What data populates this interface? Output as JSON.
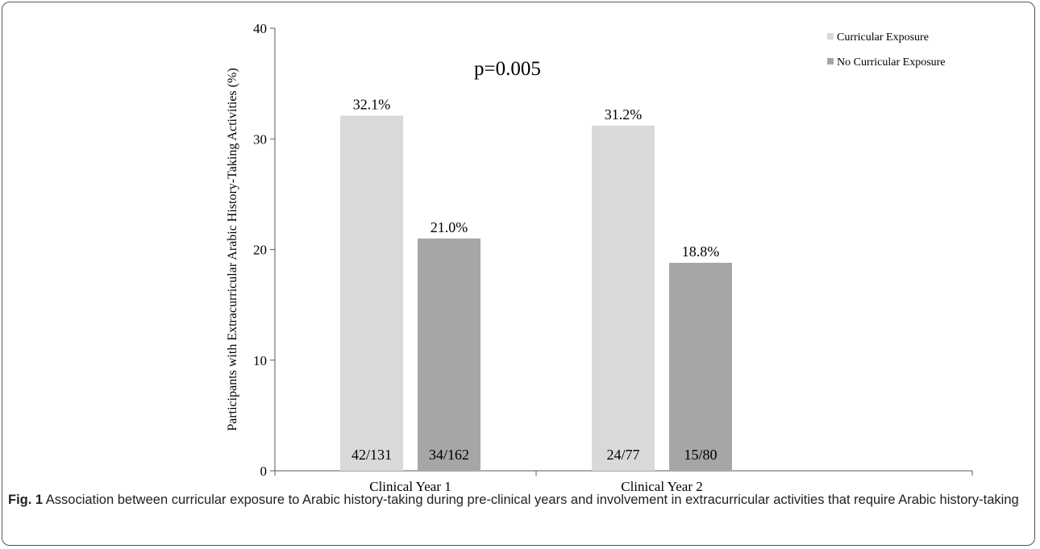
{
  "chart_data": {
    "type": "bar",
    "categories": [
      "Clinical Year 1",
      "Clinical Year 2"
    ],
    "series": [
      {
        "name": "Curricular Exposure",
        "values": [
          32.1,
          31.2
        ],
        "value_labels": [
          "32.1%",
          "31.2%"
        ],
        "count_labels": [
          "42/131",
          "24/77"
        ],
        "color": "#d9d9d9"
      },
      {
        "name": "No Curricular Exposure",
        "values": [
          21.0,
          18.8
        ],
        "value_labels": [
          "21.0%",
          "18.8%"
        ],
        "count_labels": [
          "34/162",
          "15/80"
        ],
        "color": "#a6a6a6"
      }
    ],
    "ylabel": "Participants with Extracurricular Arabic History-Taking Activities (%)",
    "xlabel": "",
    "ylim": [
      0,
      40
    ],
    "yticks": [
      0,
      10,
      20,
      30,
      40
    ],
    "annotation": "p=0.005",
    "legend": "top-right",
    "grid": false
  },
  "caption": {
    "label": "Fig. 1",
    "text": "Association between curricular exposure to Arabic history-taking during pre-clinical years and involvement in extracurricular activities that require Arabic history-taking"
  }
}
